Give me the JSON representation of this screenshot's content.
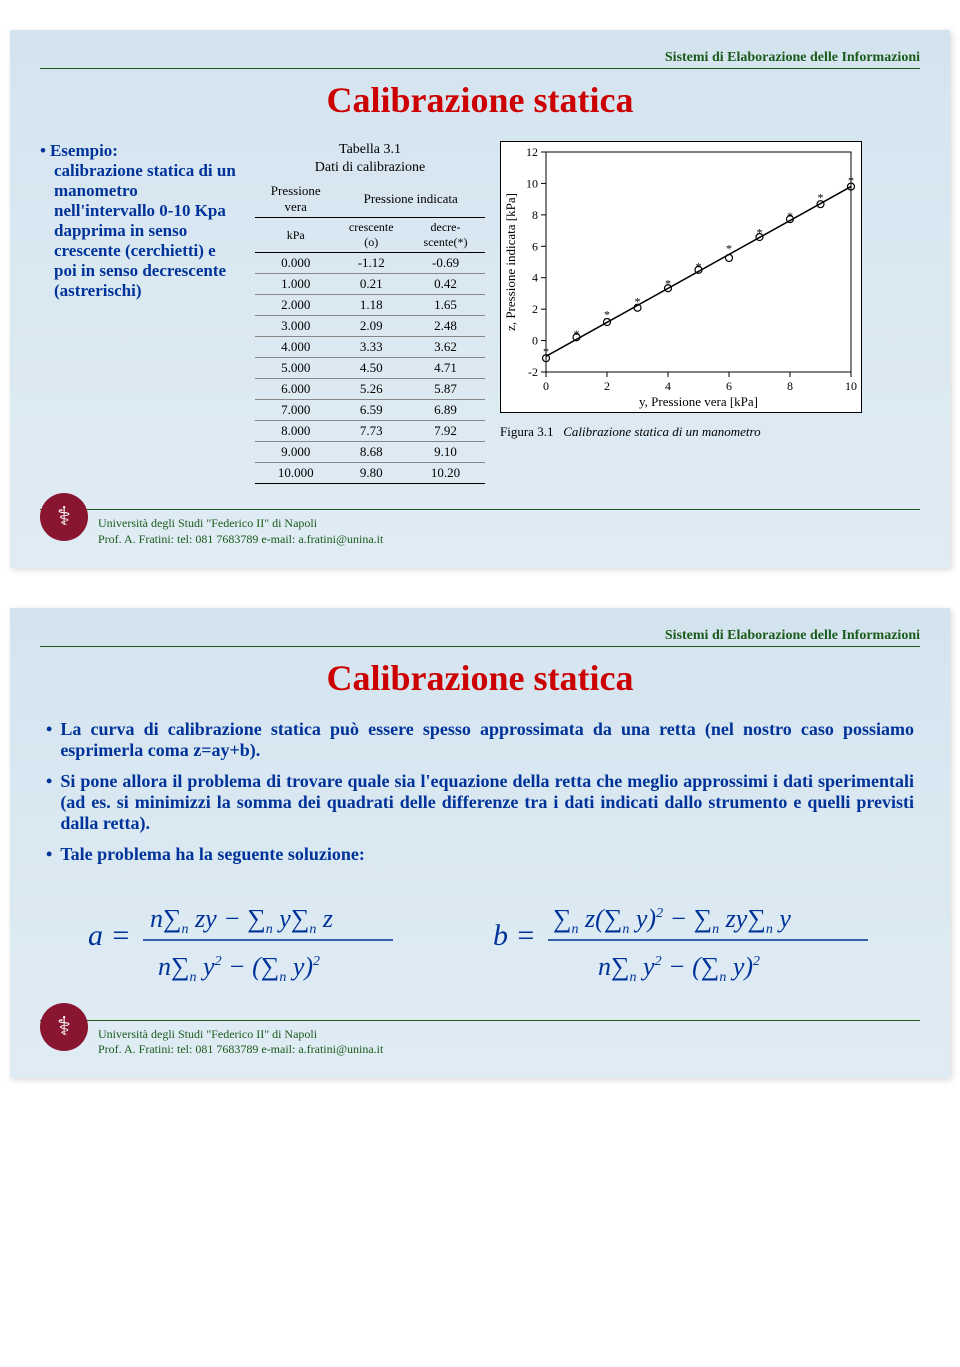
{
  "course_header": "Sistemi di Elaborazione delle Informazioni",
  "slide1": {
    "title": "Calibrazione statica",
    "example_lines": [
      "Esempio:",
      "calibrazione statica di un manometro nell'intervallo 0-10 Kpa dapprima in senso crescente (cerchietti) e poi in senso decrescente (astrerischi)"
    ],
    "table": {
      "caption1": "Tabella 3.1",
      "caption2": "Dati di calibrazione",
      "col_headers_top": [
        "Pressione vera",
        "Pressione indicata"
      ],
      "col_units": "kPa",
      "col_sub": [
        "crescente (o)",
        "decre-scente(*)"
      ],
      "rows": [
        [
          "0.000",
          "-1.12",
          "-0.69"
        ],
        [
          "1.000",
          "0.21",
          "0.42"
        ],
        [
          "2.000",
          "1.18",
          "1.65"
        ],
        [
          "3.000",
          "2.09",
          "2.48"
        ],
        [
          "4.000",
          "3.33",
          "3.62"
        ],
        [
          "5.000",
          "4.50",
          "4.71"
        ],
        [
          "6.000",
          "5.26",
          "5.87"
        ],
        [
          "7.000",
          "6.59",
          "6.89"
        ],
        [
          "8.000",
          "7.73",
          "7.92"
        ],
        [
          "9.000",
          "8.68",
          "9.10"
        ],
        [
          "10.000",
          "9.80",
          "10.20"
        ]
      ]
    },
    "chart": {
      "type": "scatter",
      "xlabel": "y, Pressione vera [kPa]",
      "ylabel": "z, Pressione indicata [kPa]",
      "xlim": [
        0,
        10
      ],
      "ylim": [
        -2,
        12
      ],
      "xticks": [
        0,
        2,
        4,
        6,
        8,
        10
      ],
      "yticks": [
        -2,
        0,
        2,
        4,
        6,
        8,
        10,
        12
      ],
      "series": [
        {
          "name": "crescente",
          "marker": "o",
          "color": "#000000",
          "points": [
            [
              0,
              -1.12
            ],
            [
              1,
              0.21
            ],
            [
              2,
              1.18
            ],
            [
              3,
              2.09
            ],
            [
              4,
              3.33
            ],
            [
              5,
              4.5
            ],
            [
              6,
              5.26
            ],
            [
              7,
              6.59
            ],
            [
              8,
              7.73
            ],
            [
              9,
              8.68
            ],
            [
              10,
              9.8
            ]
          ]
        },
        {
          "name": "decrescente",
          "marker": "*",
          "color": "#000000",
          "points": [
            [
              0,
              -0.69
            ],
            [
              1,
              0.42
            ],
            [
              2,
              1.65
            ],
            [
              3,
              2.48
            ],
            [
              4,
              3.62
            ],
            [
              5,
              4.71
            ],
            [
              6,
              5.87
            ],
            [
              7,
              6.89
            ],
            [
              8,
              7.92
            ],
            [
              9,
              9.1
            ],
            [
              10,
              10.2
            ]
          ]
        }
      ],
      "fit_line": {
        "a": 1.08,
        "b": -1.0,
        "color": "#000"
      },
      "background": "#ffffff"
    },
    "fig_caption_label": "Figura 3.1",
    "fig_caption_text": "Calibrazione statica di un manometro"
  },
  "slide2": {
    "title": "Calibrazione statica",
    "bullets": [
      "La curva di calibrazione statica può essere spesso approssimata da una retta (nel nostro caso possiamo esprimerla coma z=ay+b).",
      "Si pone allora il problema di trovare quale sia l'equazione della retta che meglio approssimi i dati sperimentali (ad es. si minimizzi la somma dei quadrati delle differenze tra i dati indicati dallo strumento e quelli previsti dalla retta).",
      "Tale problema ha la seguente soluzione:"
    ],
    "equations": {
      "a": "a = (nΣzy − ΣyΣz) / (nΣy² − (Σy)²)",
      "b": "b = (Σz(Σy)² − ΣzyΣy) / (nΣy² − (Σy)²)"
    }
  },
  "footer": {
    "line1": "Università degli Studi \"Federico II\" di Napoli",
    "line2": "Prof. A. Fratini: tel: 081 7683789   e-mail: a.fratini@unina.it"
  },
  "colors": {
    "title": "#cc0000",
    "text": "#003399",
    "header": "#1a5a1a",
    "seal": "#8a1530"
  }
}
